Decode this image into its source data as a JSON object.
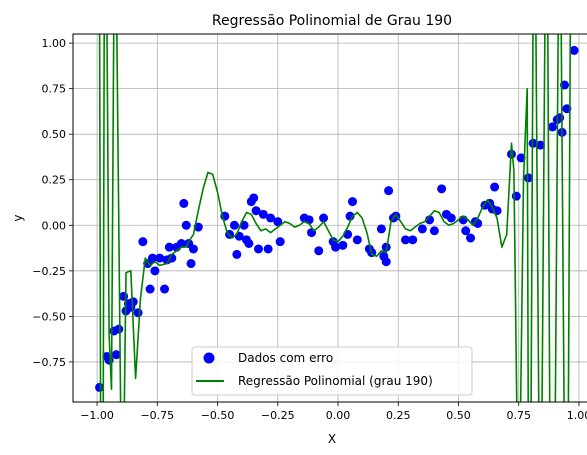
{
  "chart_data": {
    "type": "scatter",
    "title": "Regressão Polinomial de Grau 190",
    "xlabel": "X",
    "ylabel": "y",
    "xlim": [
      -1.1,
      1.05
    ],
    "ylim": [
      -0.97,
      1.05
    ],
    "x_ticks": [
      {
        "value": -1.0,
        "label": "−1.00"
      },
      {
        "value": -0.75,
        "label": "−0.75"
      },
      {
        "value": -0.5,
        "label": "−0.50"
      },
      {
        "value": -0.25,
        "label": "−0.25"
      },
      {
        "value": 0.0,
        "label": "0.00"
      },
      {
        "value": 0.25,
        "label": "0.25"
      },
      {
        "value": 0.5,
        "label": "0.50"
      },
      {
        "value": 0.75,
        "label": "0.75"
      },
      {
        "value": 1.0,
        "label": "1.00"
      }
    ],
    "y_ticks": [
      {
        "value": -0.75,
        "label": "−0.75"
      },
      {
        "value": -0.5,
        "label": "−0.50"
      },
      {
        "value": -0.25,
        "label": "−0.25"
      },
      {
        "value": 0.0,
        "label": "0.00"
      },
      {
        "value": 0.25,
        "label": "0.25"
      },
      {
        "value": 0.5,
        "label": "0.50"
      },
      {
        "value": 0.75,
        "label": "0.75"
      },
      {
        "value": 1.0,
        "label": "1.00"
      }
    ],
    "grid": true,
    "legend": {
      "placement": "lower-center"
    },
    "series": [
      {
        "name": "Dados com erro",
        "kind": "scatter",
        "color": "#0000ff",
        "points": [
          [
            -0.99,
            -0.89
          ],
          [
            -0.96,
            -0.72
          ],
          [
            -0.95,
            -0.74
          ],
          [
            -0.93,
            -0.58
          ],
          [
            -0.92,
            -0.71
          ],
          [
            -0.91,
            -0.57
          ],
          [
            -0.89,
            -0.39
          ],
          [
            -0.88,
            -0.47
          ],
          [
            -0.87,
            -0.43
          ],
          [
            -0.86,
            -0.45
          ],
          [
            -0.85,
            -0.42
          ],
          [
            -0.83,
            -0.48
          ],
          [
            -0.81,
            -0.09
          ],
          [
            -0.79,
            -0.21
          ],
          [
            -0.78,
            -0.35
          ],
          [
            -0.77,
            -0.18
          ],
          [
            -0.76,
            -0.25
          ],
          [
            -0.74,
            -0.18
          ],
          [
            -0.72,
            -0.35
          ],
          [
            -0.71,
            -0.19
          ],
          [
            -0.7,
            -0.12
          ],
          [
            -0.69,
            -0.18
          ],
          [
            -0.67,
            -0.12
          ],
          [
            -0.65,
            -0.1
          ],
          [
            -0.64,
            0.12
          ],
          [
            -0.63,
            0.0
          ],
          [
            -0.62,
            -0.1
          ],
          [
            -0.61,
            -0.21
          ],
          [
            -0.6,
            -0.13
          ],
          [
            -0.58,
            -0.01
          ],
          [
            -0.47,
            0.05
          ],
          [
            -0.45,
            -0.05
          ],
          [
            -0.43,
            0.0
          ],
          [
            -0.42,
            -0.16
          ],
          [
            -0.41,
            -0.06
          ],
          [
            -0.39,
            0.0
          ],
          [
            -0.38,
            -0.08
          ],
          [
            -0.37,
            -0.1
          ],
          [
            -0.36,
            0.13
          ],
          [
            -0.35,
            0.15
          ],
          [
            -0.34,
            0.08
          ],
          [
            -0.33,
            -0.13
          ],
          [
            -0.31,
            0.06
          ],
          [
            -0.29,
            -0.13
          ],
          [
            -0.28,
            0.04
          ],
          [
            -0.25,
            0.02
          ],
          [
            -0.24,
            -0.09
          ],
          [
            -0.14,
            0.04
          ],
          [
            -0.12,
            0.03
          ],
          [
            -0.11,
            -0.04
          ],
          [
            -0.08,
            -0.14
          ],
          [
            -0.06,
            0.04
          ],
          [
            -0.02,
            -0.09
          ],
          [
            -0.01,
            -0.12
          ],
          [
            0.02,
            -0.11
          ],
          [
            0.04,
            -0.05
          ],
          [
            0.05,
            0.05
          ],
          [
            0.06,
            0.13
          ],
          [
            0.08,
            -0.08
          ],
          [
            0.13,
            -0.13
          ],
          [
            0.14,
            -0.15
          ],
          [
            0.18,
            -0.02
          ],
          [
            0.19,
            -0.17
          ],
          [
            0.2,
            -0.2
          ],
          [
            0.2,
            -0.12
          ],
          [
            0.21,
            0.19
          ],
          [
            0.23,
            0.04
          ],
          [
            0.24,
            0.05
          ],
          [
            0.28,
            -0.08
          ],
          [
            0.31,
            -0.08
          ],
          [
            0.35,
            -0.02
          ],
          [
            0.38,
            0.03
          ],
          [
            0.4,
            -0.03
          ],
          [
            0.43,
            0.2
          ],
          [
            0.45,
            0.06
          ],
          [
            0.47,
            0.04
          ],
          [
            0.52,
            0.03
          ],
          [
            0.53,
            -0.03
          ],
          [
            0.55,
            -0.07
          ],
          [
            0.57,
            0.02
          ],
          [
            0.58,
            0.01
          ],
          [
            0.61,
            0.11
          ],
          [
            0.63,
            0.12
          ],
          [
            0.64,
            0.09
          ],
          [
            0.65,
            0.21
          ],
          [
            0.66,
            0.08
          ],
          [
            0.72,
            0.39
          ],
          [
            0.74,
            0.16
          ],
          [
            0.76,
            0.37
          ],
          [
            0.79,
            0.26
          ],
          [
            0.81,
            0.45
          ],
          [
            0.84,
            0.44
          ],
          [
            0.89,
            0.54
          ],
          [
            0.91,
            0.58
          ],
          [
            0.92,
            0.59
          ],
          [
            0.93,
            0.51
          ],
          [
            0.94,
            0.77
          ],
          [
            0.95,
            0.64
          ],
          [
            0.98,
            0.96
          ]
        ]
      },
      {
        "name": "Regressão Polinomial (grau 190)",
        "kind": "line",
        "color": "#008000",
        "points": [
          [
            -0.99,
            1.3
          ],
          [
            -0.985,
            -1.3
          ],
          [
            -0.975,
            -1.3
          ],
          [
            -0.97,
            1.3
          ],
          [
            -0.96,
            1.3
          ],
          [
            -0.95,
            -0.6
          ],
          [
            -0.94,
            -0.9
          ],
          [
            -0.93,
            1.3
          ],
          [
            -0.92,
            1.3
          ],
          [
            -0.9,
            -1.3
          ],
          [
            -0.89,
            -1.3
          ],
          [
            -0.88,
            -0.26
          ],
          [
            -0.86,
            -0.25
          ],
          [
            -0.84,
            -0.84
          ],
          [
            -0.82,
            -0.4
          ],
          [
            -0.8,
            -0.18
          ],
          [
            -0.78,
            -0.22
          ],
          [
            -0.76,
            -0.2
          ],
          [
            -0.74,
            -0.22
          ],
          [
            -0.71,
            -0.21
          ],
          [
            -0.69,
            -0.16
          ],
          [
            -0.67,
            -0.14
          ],
          [
            -0.65,
            -0.12
          ],
          [
            -0.63,
            -0.12
          ],
          [
            -0.62,
            -0.09
          ],
          [
            -0.6,
            -0.05
          ],
          [
            -0.58,
            0.08
          ],
          [
            -0.56,
            0.2
          ],
          [
            -0.54,
            0.29
          ],
          [
            -0.52,
            0.28
          ],
          [
            -0.5,
            0.18
          ],
          [
            -0.48,
            0.05
          ],
          [
            -0.46,
            -0.04
          ],
          [
            -0.44,
            -0.07
          ],
          [
            -0.42,
            -0.05
          ],
          [
            -0.4,
            0.02
          ],
          [
            -0.38,
            0.07
          ],
          [
            -0.36,
            0.06
          ],
          [
            -0.34,
            0.01
          ],
          [
            -0.32,
            -0.03
          ],
          [
            -0.3,
            -0.02
          ],
          [
            -0.28,
            -0.04
          ],
          [
            -0.26,
            -0.02
          ],
          [
            -0.24,
            0.0
          ],
          [
            -0.22,
            0.02
          ],
          [
            -0.2,
            0.01
          ],
          [
            -0.18,
            -0.01
          ],
          [
            -0.16,
            0.0
          ],
          [
            -0.14,
            0.02
          ],
          [
            -0.12,
            0.01
          ],
          [
            -0.1,
            -0.03
          ],
          [
            -0.08,
            -0.01
          ],
          [
            -0.06,
            0.02
          ],
          [
            -0.04,
            -0.03
          ],
          [
            -0.02,
            -0.08
          ],
          [
            0.0,
            -0.09
          ],
          [
            0.02,
            -0.06
          ],
          [
            0.04,
            -0.01
          ],
          [
            0.06,
            0.05
          ],
          [
            0.08,
            0.07
          ],
          [
            0.1,
            0.04
          ],
          [
            0.12,
            -0.04
          ],
          [
            0.14,
            -0.16
          ],
          [
            0.16,
            -0.17
          ],
          [
            0.18,
            -0.14
          ],
          [
            0.2,
            -0.15
          ],
          [
            0.22,
            0.02
          ],
          [
            0.24,
            0.06
          ],
          [
            0.26,
            0.02
          ],
          [
            0.28,
            -0.02
          ],
          [
            0.3,
            -0.03
          ],
          [
            0.32,
            -0.01
          ],
          [
            0.34,
            0.01
          ],
          [
            0.36,
            0.02
          ],
          [
            0.38,
            0.05
          ],
          [
            0.4,
            0.08
          ],
          [
            0.42,
            0.07
          ],
          [
            0.44,
            0.02
          ],
          [
            0.46,
            0.0
          ],
          [
            0.48,
            0.01
          ],
          [
            0.5,
            0.03
          ],
          [
            0.52,
            0.05
          ],
          [
            0.54,
            0.03
          ],
          [
            0.56,
            0.0
          ],
          [
            0.58,
            0.04
          ],
          [
            0.6,
            0.1
          ],
          [
            0.62,
            0.14
          ],
          [
            0.64,
            0.1
          ],
          [
            0.66,
            0.04
          ],
          [
            0.68,
            -0.12
          ],
          [
            0.7,
            -0.05
          ],
          [
            0.72,
            0.45
          ],
          [
            0.73,
            0.3
          ],
          [
            0.745,
            -1.3
          ],
          [
            0.755,
            -1.3
          ],
          [
            0.77,
            0.25
          ],
          [
            0.785,
            0.75
          ],
          [
            0.79,
            -1.3
          ],
          [
            0.8,
            -1.3
          ],
          [
            0.81,
            1.3
          ],
          [
            0.82,
            1.3
          ],
          [
            0.835,
            -1.3
          ],
          [
            0.845,
            -1.3
          ],
          [
            0.86,
            1.3
          ],
          [
            0.87,
            1.3
          ],
          [
            0.88,
            -1.3
          ],
          [
            0.9,
            -1.3
          ],
          [
            0.915,
            1.3
          ],
          [
            0.925,
            1.3
          ],
          [
            0.94,
            -1.3
          ],
          [
            0.955,
            -1.3
          ],
          [
            0.965,
            1.3
          ]
        ]
      }
    ]
  }
}
